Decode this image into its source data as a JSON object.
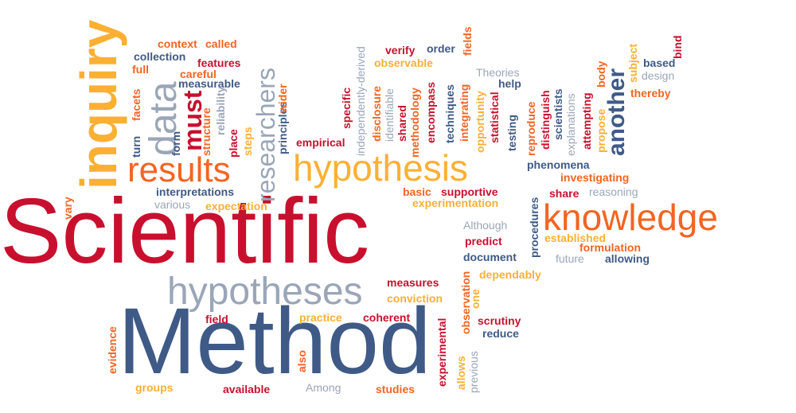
{
  "words": {
    "scientific": "Scientific",
    "method": "Method",
    "hypotheses": "hypotheses",
    "hypothesis": "hypothesis",
    "knowledge": "knowledge",
    "results": "results",
    "inquiry": "inquiry",
    "data": "data",
    "must": "must",
    "researchers": "researchers",
    "another": "another",
    "context": "context",
    "called": "called",
    "collection": "collection",
    "features": "features",
    "full": "full",
    "careful": "careful",
    "measurable": "measurable",
    "facets": "facets",
    "turn": "turn",
    "form": "form",
    "structure": "structure",
    "reliability": "reliability",
    "place": "place",
    "steps": "steps",
    "principles": "principles",
    "wider": "wider",
    "empirical": "empirical",
    "specific": "specific",
    "independently_derived": "independently-derived",
    "disclosure": "disclosure",
    "identifiable": "identifiable",
    "shared": "shared",
    "methodology": "methodology",
    "encompass": "encompass",
    "verify": "verify",
    "order": "order",
    "fields": "fields",
    "observable": "observable",
    "integrating": "integrating",
    "techniques": "techniques",
    "opportunity": "opportunity",
    "statistical": "statistical",
    "theories": "Theories",
    "help": "help",
    "testing": "testing",
    "reproduce": "reproduce",
    "distinguish": "distinguish",
    "scientists": "scientists",
    "explanations": "explanations",
    "attempting": "attempting",
    "propose": "propose",
    "body": "body",
    "subject": "subject",
    "bind": "bind",
    "based": "based",
    "design": "design",
    "thereby": "thereby",
    "phenomena": "phenomena",
    "investigating": "investigating",
    "interpretations": "interpretations",
    "various": "various",
    "expectation": "expectation",
    "basic": "basic",
    "supportive": "supportive",
    "experimentation": "experimentation",
    "share": "share",
    "reasoning": "reasoning",
    "procedures": "procedures",
    "although": "Although",
    "predict": "predict",
    "document": "document",
    "established": "established",
    "formulation": "formulation",
    "future": "future",
    "allowing": "allowing",
    "dependably": "dependably",
    "vary": "vary",
    "measures": "measures",
    "conviction": "conviction",
    "observation": "observation",
    "one": "one",
    "practice": "practice",
    "coherent": "coherent",
    "field": "field",
    "scrutiny": "scrutiny",
    "reduce": "reduce",
    "evidence": "evidence",
    "also": "also",
    "experimental": "experimental",
    "allows": "allows",
    "previous": "previous",
    "groups": "groups",
    "available": "available",
    "among": "Among",
    "studies": "studies"
  }
}
